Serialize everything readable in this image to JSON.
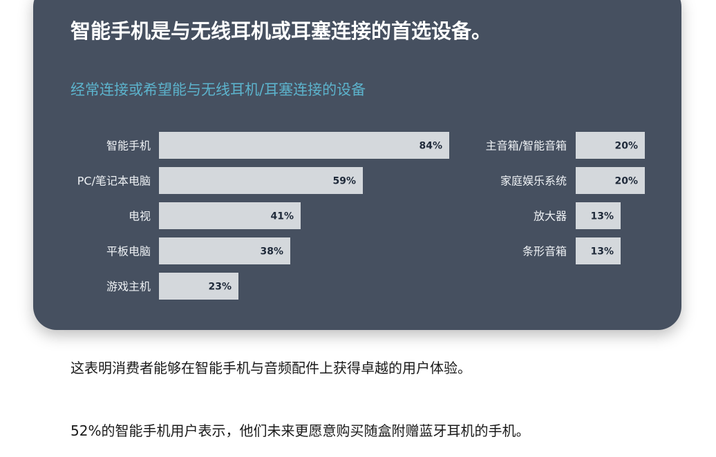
{
  "headline": "智能手机是与无线耳机或耳塞连接的首选设备。",
  "colors": {
    "panel": "#465060",
    "bar": "#d4d8dc",
    "accent": "#5cb3cc"
  },
  "chart_data": {
    "type": "bar",
    "orientation": "horizontal",
    "title": "经常连接或希望能与无线耳机/耳塞连接的设备",
    "unit": "%",
    "groups": [
      {
        "categories": [
          "智能手机",
          "PC/笔记本电脑",
          "电视",
          "平板电脑",
          "游戏主机"
        ],
        "values": [
          84,
          59,
          41,
          38,
          23
        ],
        "labels": [
          "84%",
          "59%",
          "41%",
          "38%",
          "23%"
        ]
      },
      {
        "categories": [
          "主音箱/智能音箱",
          "家庭娱乐系统",
          "放大器",
          "条形音箱"
        ],
        "values": [
          20,
          20,
          13,
          13
        ],
        "labels": [
          "20%",
          "20%",
          "13%",
          "13%"
        ]
      }
    ]
  },
  "paragraphs": [
    "这表明消费者能够在智能手机与音频配件上获得卓越的用户体验。",
    "52%的智能手机用户表示，他们未来更愿意购买随盒附赠蓝牙耳机的手机。"
  ]
}
